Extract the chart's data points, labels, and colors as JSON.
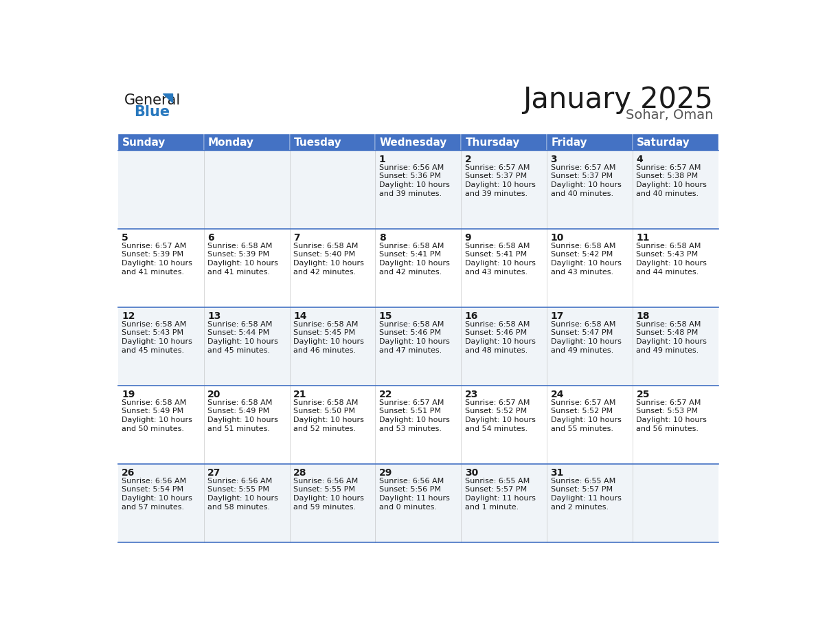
{
  "title": "January 2025",
  "subtitle": "Sohar, Oman",
  "header_color": "#4472C4",
  "header_text_color": "#FFFFFF",
  "cell_bg_even": "#F0F4F8",
  "cell_bg_odd": "#FFFFFF",
  "border_color": "#4472C4",
  "day_headers": [
    "Sunday",
    "Monday",
    "Tuesday",
    "Wednesday",
    "Thursday",
    "Friday",
    "Saturday"
  ],
  "calendar_data": [
    [
      {
        "day": "",
        "sunrise": "",
        "sunset": "",
        "daylight": ""
      },
      {
        "day": "",
        "sunrise": "",
        "sunset": "",
        "daylight": ""
      },
      {
        "day": "",
        "sunrise": "",
        "sunset": "",
        "daylight": ""
      },
      {
        "day": "1",
        "sunrise": "6:56 AM",
        "sunset": "5:36 PM",
        "daylight_hours": "10",
        "daylight_minutes": "39"
      },
      {
        "day": "2",
        "sunrise": "6:57 AM",
        "sunset": "5:37 PM",
        "daylight_hours": "10",
        "daylight_minutes": "39"
      },
      {
        "day": "3",
        "sunrise": "6:57 AM",
        "sunset": "5:37 PM",
        "daylight_hours": "10",
        "daylight_minutes": "40"
      },
      {
        "day": "4",
        "sunrise": "6:57 AM",
        "sunset": "5:38 PM",
        "daylight_hours": "10",
        "daylight_minutes": "40"
      }
    ],
    [
      {
        "day": "5",
        "sunrise": "6:57 AM",
        "sunset": "5:39 PM",
        "daylight_hours": "10",
        "daylight_minutes": "41"
      },
      {
        "day": "6",
        "sunrise": "6:58 AM",
        "sunset": "5:39 PM",
        "daylight_hours": "10",
        "daylight_minutes": "41"
      },
      {
        "day": "7",
        "sunrise": "6:58 AM",
        "sunset": "5:40 PM",
        "daylight_hours": "10",
        "daylight_minutes": "42"
      },
      {
        "day": "8",
        "sunrise": "6:58 AM",
        "sunset": "5:41 PM",
        "daylight_hours": "10",
        "daylight_minutes": "42"
      },
      {
        "day": "9",
        "sunrise": "6:58 AM",
        "sunset": "5:41 PM",
        "daylight_hours": "10",
        "daylight_minutes": "43"
      },
      {
        "day": "10",
        "sunrise": "6:58 AM",
        "sunset": "5:42 PM",
        "daylight_hours": "10",
        "daylight_minutes": "43"
      },
      {
        "day": "11",
        "sunrise": "6:58 AM",
        "sunset": "5:43 PM",
        "daylight_hours": "10",
        "daylight_minutes": "44"
      }
    ],
    [
      {
        "day": "12",
        "sunrise": "6:58 AM",
        "sunset": "5:43 PM",
        "daylight_hours": "10",
        "daylight_minutes": "45"
      },
      {
        "day": "13",
        "sunrise": "6:58 AM",
        "sunset": "5:44 PM",
        "daylight_hours": "10",
        "daylight_minutes": "45"
      },
      {
        "day": "14",
        "sunrise": "6:58 AM",
        "sunset": "5:45 PM",
        "daylight_hours": "10",
        "daylight_minutes": "46"
      },
      {
        "day": "15",
        "sunrise": "6:58 AM",
        "sunset": "5:46 PM",
        "daylight_hours": "10",
        "daylight_minutes": "47"
      },
      {
        "day": "16",
        "sunrise": "6:58 AM",
        "sunset": "5:46 PM",
        "daylight_hours": "10",
        "daylight_minutes": "48"
      },
      {
        "day": "17",
        "sunrise": "6:58 AM",
        "sunset": "5:47 PM",
        "daylight_hours": "10",
        "daylight_minutes": "49"
      },
      {
        "day": "18",
        "sunrise": "6:58 AM",
        "sunset": "5:48 PM",
        "daylight_hours": "10",
        "daylight_minutes": "49"
      }
    ],
    [
      {
        "day": "19",
        "sunrise": "6:58 AM",
        "sunset": "5:49 PM",
        "daylight_hours": "10",
        "daylight_minutes": "50"
      },
      {
        "day": "20",
        "sunrise": "6:58 AM",
        "sunset": "5:49 PM",
        "daylight_hours": "10",
        "daylight_minutes": "51"
      },
      {
        "day": "21",
        "sunrise": "6:58 AM",
        "sunset": "5:50 PM",
        "daylight_hours": "10",
        "daylight_minutes": "52"
      },
      {
        "day": "22",
        "sunrise": "6:57 AM",
        "sunset": "5:51 PM",
        "daylight_hours": "10",
        "daylight_minutes": "53"
      },
      {
        "day": "23",
        "sunrise": "6:57 AM",
        "sunset": "5:52 PM",
        "daylight_hours": "10",
        "daylight_minutes": "54"
      },
      {
        "day": "24",
        "sunrise": "6:57 AM",
        "sunset": "5:52 PM",
        "daylight_hours": "10",
        "daylight_minutes": "55"
      },
      {
        "day": "25",
        "sunrise": "6:57 AM",
        "sunset": "5:53 PM",
        "daylight_hours": "10",
        "daylight_minutes": "56"
      }
    ],
    [
      {
        "day": "26",
        "sunrise": "6:56 AM",
        "sunset": "5:54 PM",
        "daylight_hours": "10",
        "daylight_minutes": "57"
      },
      {
        "day": "27",
        "sunrise": "6:56 AM",
        "sunset": "5:55 PM",
        "daylight_hours": "10",
        "daylight_minutes": "58"
      },
      {
        "day": "28",
        "sunrise": "6:56 AM",
        "sunset": "5:55 PM",
        "daylight_hours": "10",
        "daylight_minutes": "59"
      },
      {
        "day": "29",
        "sunrise": "6:56 AM",
        "sunset": "5:56 PM",
        "daylight_hours": "11",
        "daylight_minutes": "0"
      },
      {
        "day": "30",
        "sunrise": "6:55 AM",
        "sunset": "5:57 PM",
        "daylight_hours": "11",
        "daylight_minutes": "1",
        "daylight_minute_label": "minute"
      },
      {
        "day": "31",
        "sunrise": "6:55 AM",
        "sunset": "5:57 PM",
        "daylight_hours": "11",
        "daylight_minutes": "2"
      },
      {
        "day": "",
        "sunrise": "",
        "sunset": "",
        "daylight_hours": "",
        "daylight_minutes": ""
      }
    ]
  ],
  "logo_color_general": "#1a1a1a",
  "logo_color_blue": "#2878BE",
  "logo_triangle_color": "#2878BE",
  "title_fontsize": 30,
  "subtitle_fontsize": 14,
  "header_fontsize": 11,
  "day_num_fontsize": 10,
  "cell_text_fontsize": 8,
  "figwidth": 11.88,
  "figheight": 9.18,
  "dpi": 100
}
